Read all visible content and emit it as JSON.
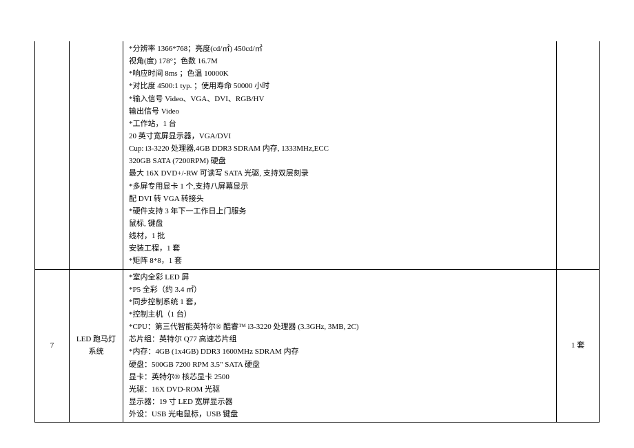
{
  "rows": [
    {
      "num": "",
      "name": "",
      "qty": "",
      "lines": [
        "*分辨率 1366*768；亮度(cd/㎡) 450cd/㎡",
        "视角(度) 178°；色数 16.7M",
        "*响应时间 8ms ；色温 10000K",
        "*对比度 4500:1 typ. ；使用寿命 50000 小时",
        "*输入信号 Video、VGA、DVI、RGB/HV",
        "输出信号 Video",
        "*工作站，1 台",
        "20 英寸宽屏显示器，VGA/DVI",
        "Cup: i3-3220 处理器,4GB DDR3 SDRAM 内存, 1333MHz,ECC",
        "320GB SATA (7200RPM) 硬盘",
        "最大 16X DVD+/-RW 可读写 SATA 光驱, 支持双层刻录",
        "*多屏专用显卡 1 个,支持八屏幕显示",
        "配 DVI 转 VGA 转接头",
        "*硬件支持 3 年下一工作日上门服务",
        "鼠标, 键盘",
        "线材，1 批",
        "安装工程，1 套",
        "*矩阵 8*8，1 套"
      ]
    },
    {
      "num": "7",
      "name": "LED 跑马灯系统",
      "qty": "1 套",
      "lines": [
        "*室内全彩 LED 屏",
        "*P5 全彩（约 3.4 ㎡）",
        "*同步控制系统 1 套，",
        "*控制主机（1 台）",
        "*CPU：第三代智能英特尔® 酷睿™ i3-3220 处理器 (3.3GHz, 3MB, 2C)",
        "芯片组：英特尔 Q77 高速芯片组",
        "*内存：4GB (1x4GB) DDR3 1600MHz SDRAM 内存",
        "硬盘：500GB 7200 RPM 3.5\" SATA 硬盘",
        "显卡：英特尔® 核芯显卡 2500",
        "光驱：16X DVD-ROM 光驱",
        "显示器：19 寸 LED 宽屏显示器",
        "外设：USB 光电鼠标，USB 键盘"
      ]
    }
  ]
}
